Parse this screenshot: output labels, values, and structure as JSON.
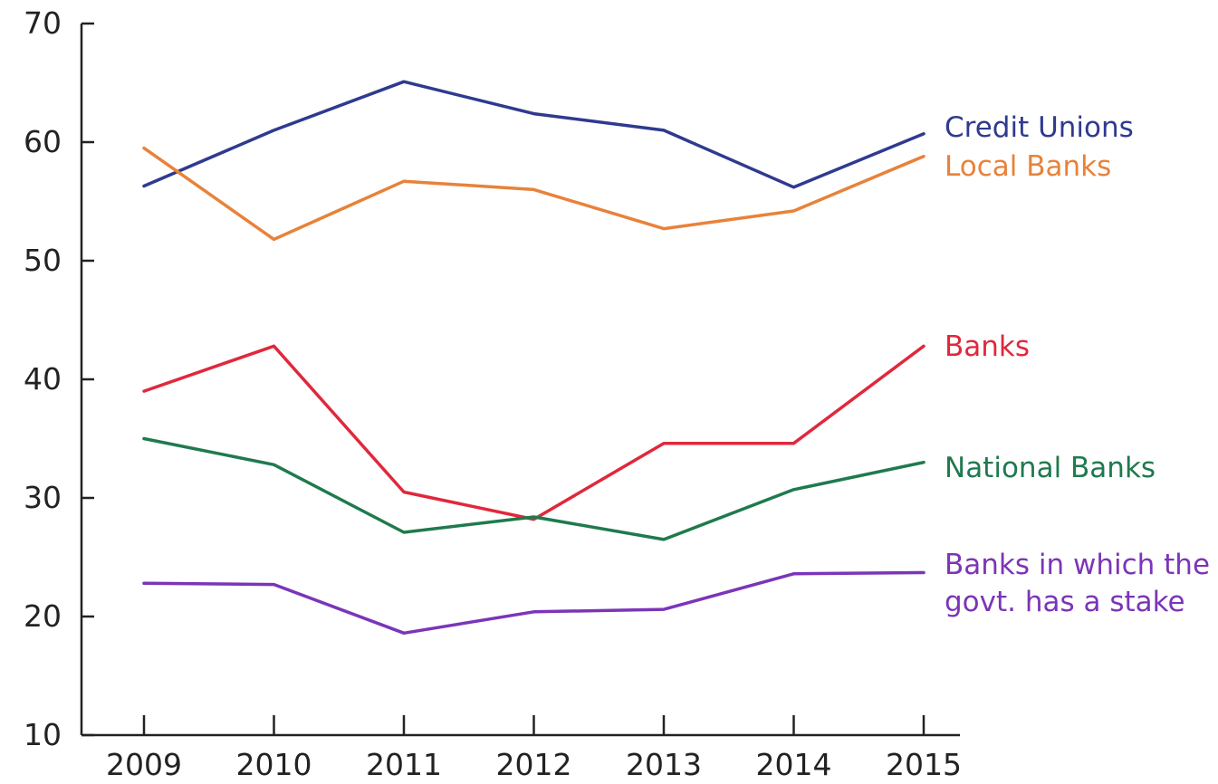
{
  "chart_data": {
    "type": "line",
    "title": "",
    "xlabel": "",
    "ylabel": "",
    "x": [
      "2009",
      "2010",
      "2011",
      "2012",
      "2013",
      "2014",
      "2015"
    ],
    "y_ticks": [
      "10",
      "20",
      "30",
      "40",
      "50",
      "60",
      "70"
    ],
    "ylim": [
      10,
      70
    ],
    "grid": false,
    "legend": "direct labels at right end of each line",
    "series": [
      {
        "name": "Credit Unions",
        "color": "#2f3a8f",
        "values": [
          56.3,
          61.0,
          65.1,
          62.4,
          61.0,
          56.2,
          60.7
        ]
      },
      {
        "name": "Local Banks",
        "color": "#e8823a",
        "values": [
          59.5,
          51.8,
          56.7,
          56.0,
          52.7,
          54.2,
          58.8
        ]
      },
      {
        "name": "Banks",
        "color": "#e0283c",
        "values": [
          39.0,
          42.8,
          30.5,
          28.2,
          34.6,
          34.6,
          42.8
        ]
      },
      {
        "name": "National Banks",
        "color": "#1f7a4d",
        "values": [
          35.0,
          32.8,
          27.1,
          28.4,
          26.5,
          30.7,
          33.0
        ]
      },
      {
        "name": "Banks in which the govt. has a stake",
        "name_lines": [
          "Banks in which the",
          "govt. has a stake"
        ],
        "color": "#7b35b8",
        "values": [
          22.8,
          22.7,
          18.6,
          20.4,
          20.6,
          23.6,
          23.7
        ]
      }
    ]
  }
}
